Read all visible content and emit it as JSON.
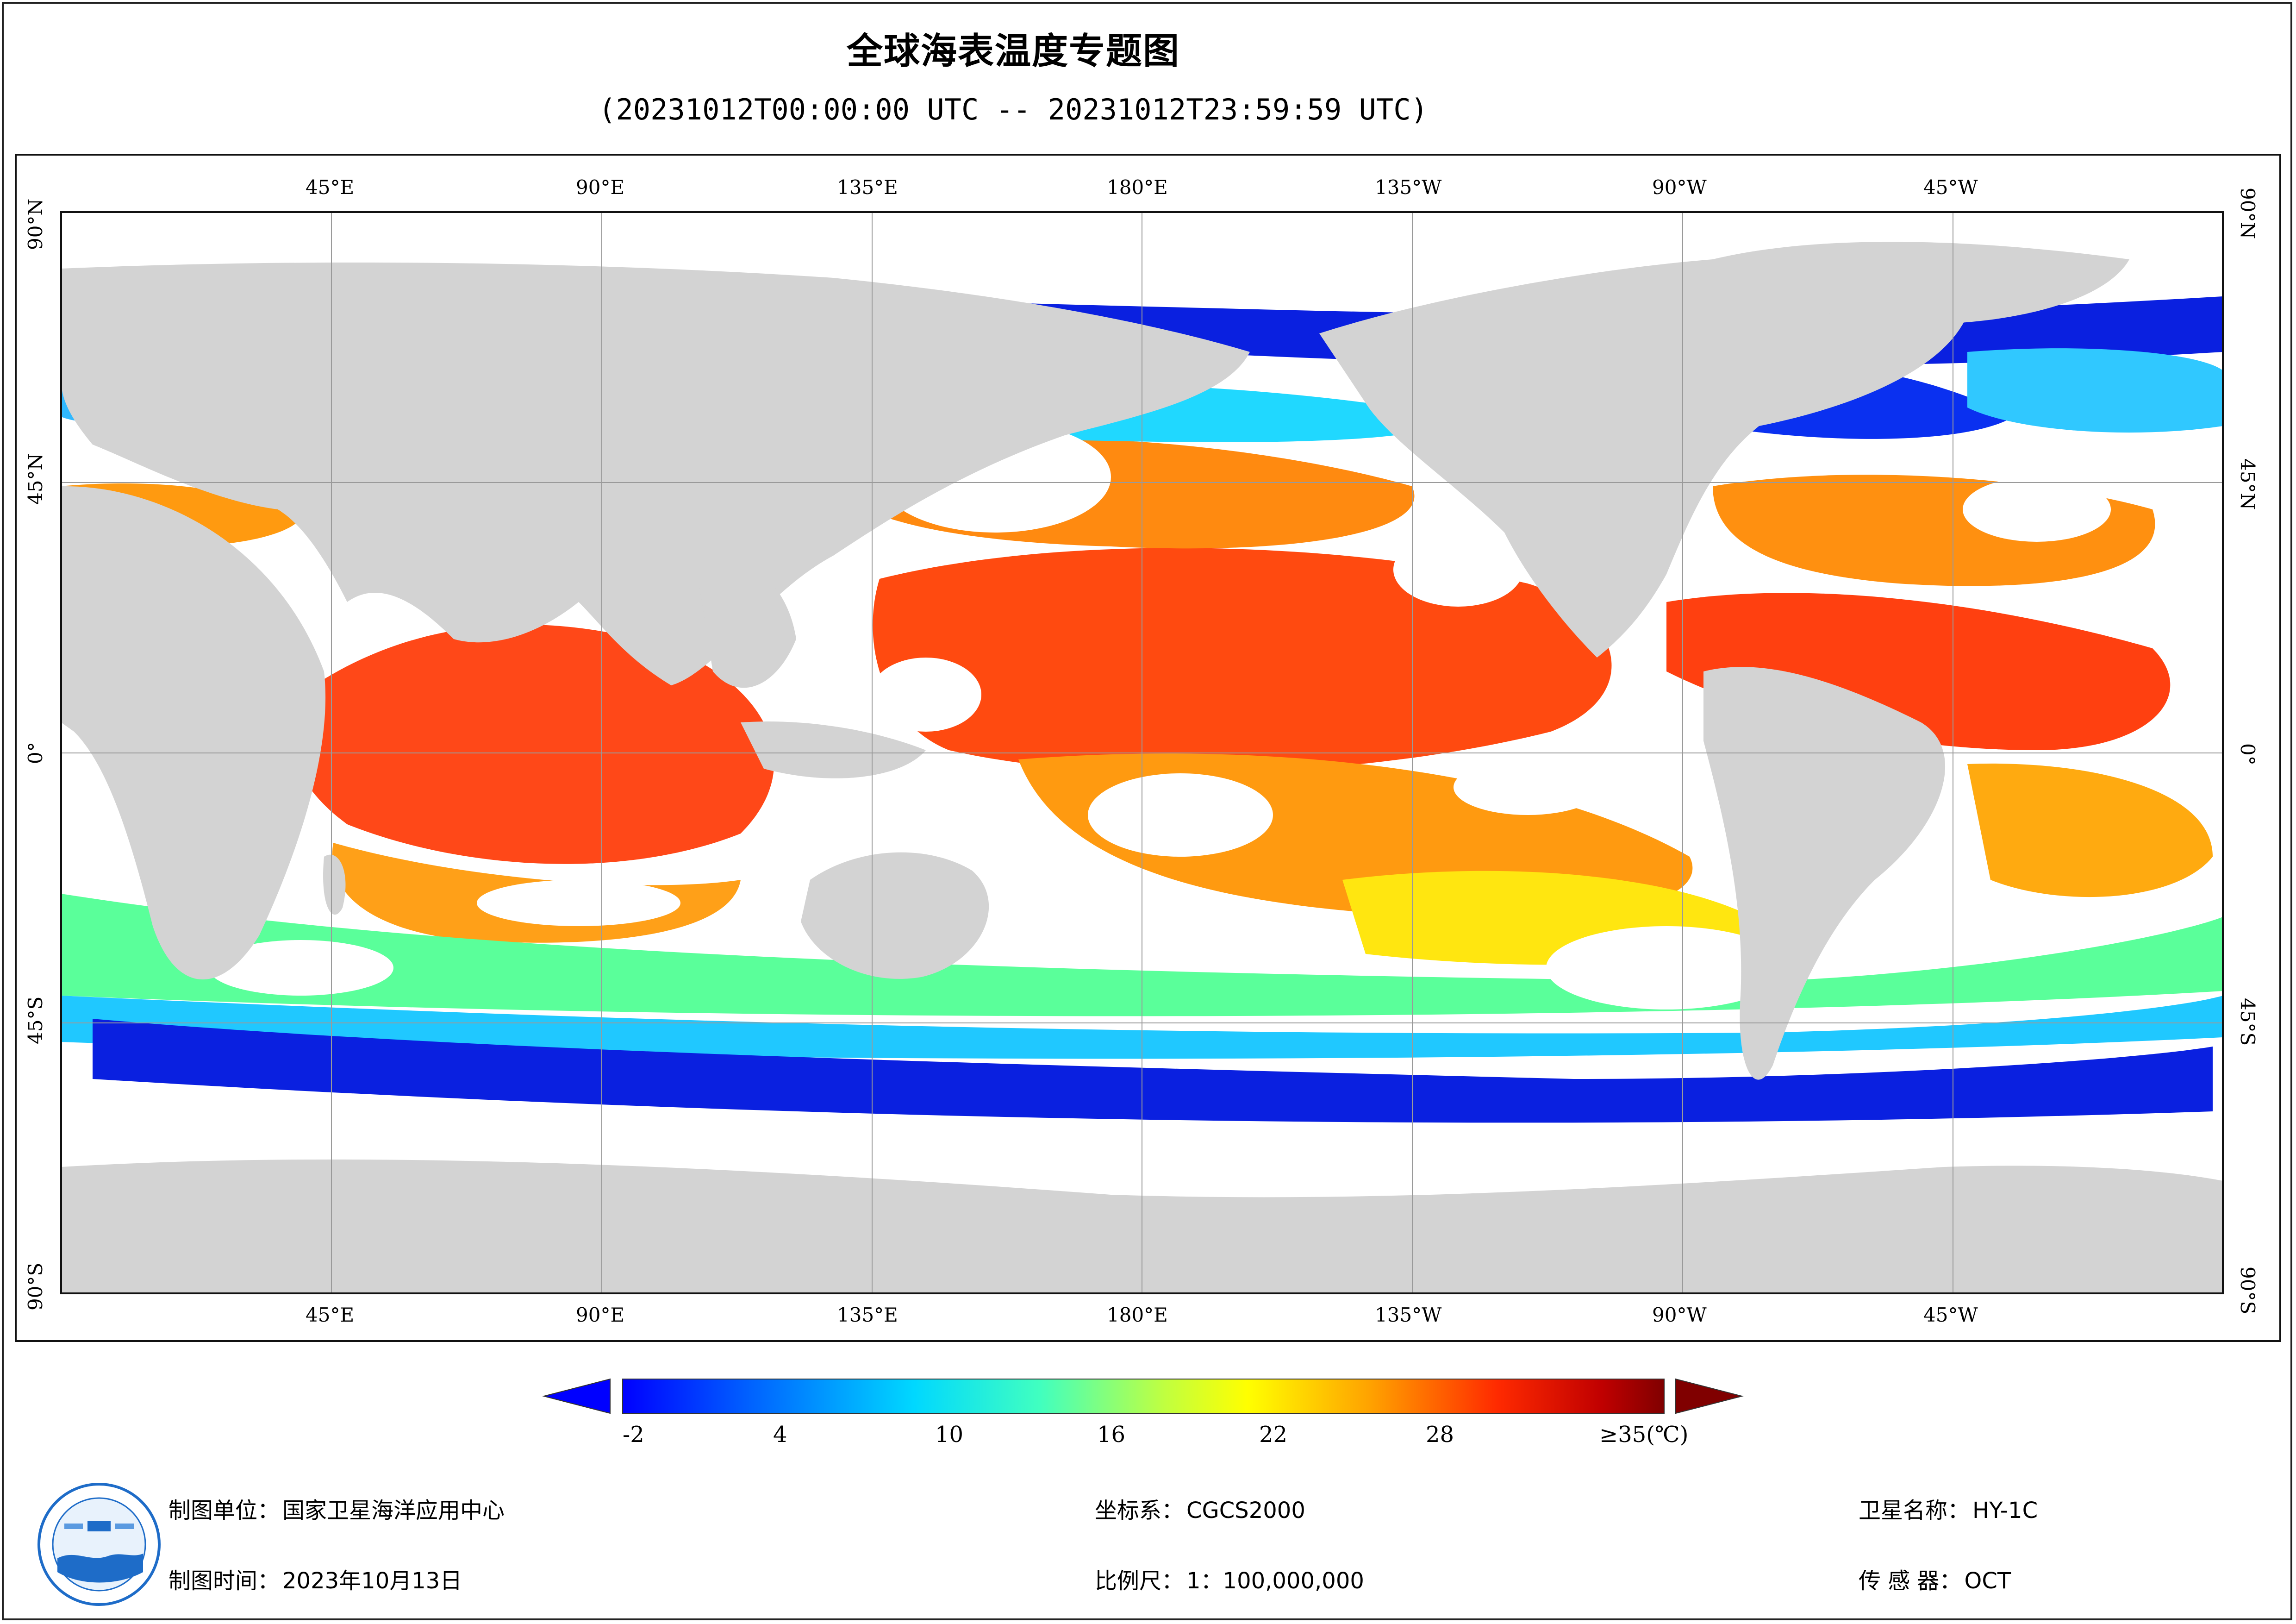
{
  "title": "全球海表温度专题图",
  "subtitle": "(20231012T00:00:00 UTC -- 20231012T23:59:59 UTC)",
  "map": {
    "top_longitudes": [
      "45°E",
      "90°E",
      "135°E",
      "180°E",
      "135°W",
      "90°W",
      "45°W"
    ],
    "bottom_longitudes": [
      "45°E",
      "90°E",
      "135°E",
      "180°E",
      "135°W",
      "90°W",
      "45°W"
    ],
    "left_latitudes": [
      "90°N",
      "45°N",
      "0°",
      "45°S",
      "90°S"
    ],
    "right_latitudes": [
      "90°N",
      "45°N",
      "0°",
      "45°S",
      "90°S"
    ],
    "colors": {
      "land": "#d3d3d3",
      "cloud_mask": "#ffffff",
      "grid": "#9a9a9a"
    }
  },
  "legend": {
    "unit": "(℃)",
    "tick_labels": [
      "-2",
      "4",
      "10",
      "16",
      "22",
      "28",
      "≥35(℃)"
    ],
    "min": -2,
    "max": 35,
    "colors": [
      "#0000ff",
      "#0060ff",
      "#00c8ff",
      "#30ffd0",
      "#a0ff60",
      "#ffff00",
      "#ffa000",
      "#ff3000",
      "#c00000",
      "#800000"
    ]
  },
  "info": {
    "unit_label": "制图单位：",
    "unit_value": "国家卫星海洋应用中心",
    "time_label": "制图时间：",
    "time_value": "2023年10月13日",
    "crs_label": "坐标系：",
    "crs_value": "CGCS2000",
    "scale_label": "比例尺：",
    "scale_value": "1：100,000,000",
    "satellite_label": "卫星名称：",
    "satellite_value": "HY-1C",
    "sensor_label": "传 感 器：",
    "sensor_value": "OCT"
  }
}
